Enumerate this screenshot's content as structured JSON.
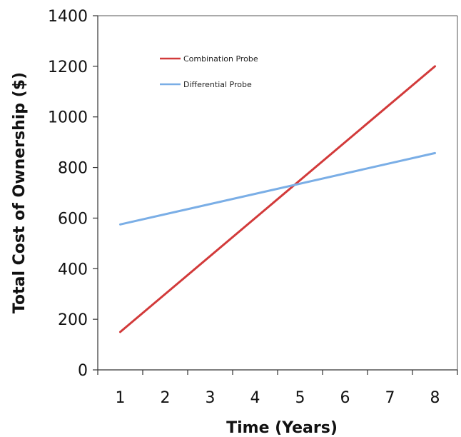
{
  "chart_data": {
    "type": "line",
    "title": "",
    "xlabel": "Time (Years)",
    "ylabel": "Total Cost of Ownership ($)",
    "x": [
      1,
      8
    ],
    "xticks": [
      "1",
      "2",
      "3",
      "4",
      "5",
      "6",
      "7",
      "8"
    ],
    "yticks": [
      "0",
      "200",
      "400",
      "600",
      "800",
      "1000",
      "1200",
      "1400"
    ],
    "xlim": [
      0.5,
      8.5
    ],
    "ylim": [
      0,
      1400
    ],
    "grid": false,
    "legend_position": "top-left",
    "series": [
      {
        "name": "Combination Probe",
        "color": "#d23a3a",
        "x": [
          1,
          8
        ],
        "y": [
          150,
          1200
        ]
      },
      {
        "name": "Differential Probe",
        "color": "#7aaee6",
        "x": [
          1,
          8
        ],
        "y": [
          575,
          857
        ]
      }
    ]
  }
}
